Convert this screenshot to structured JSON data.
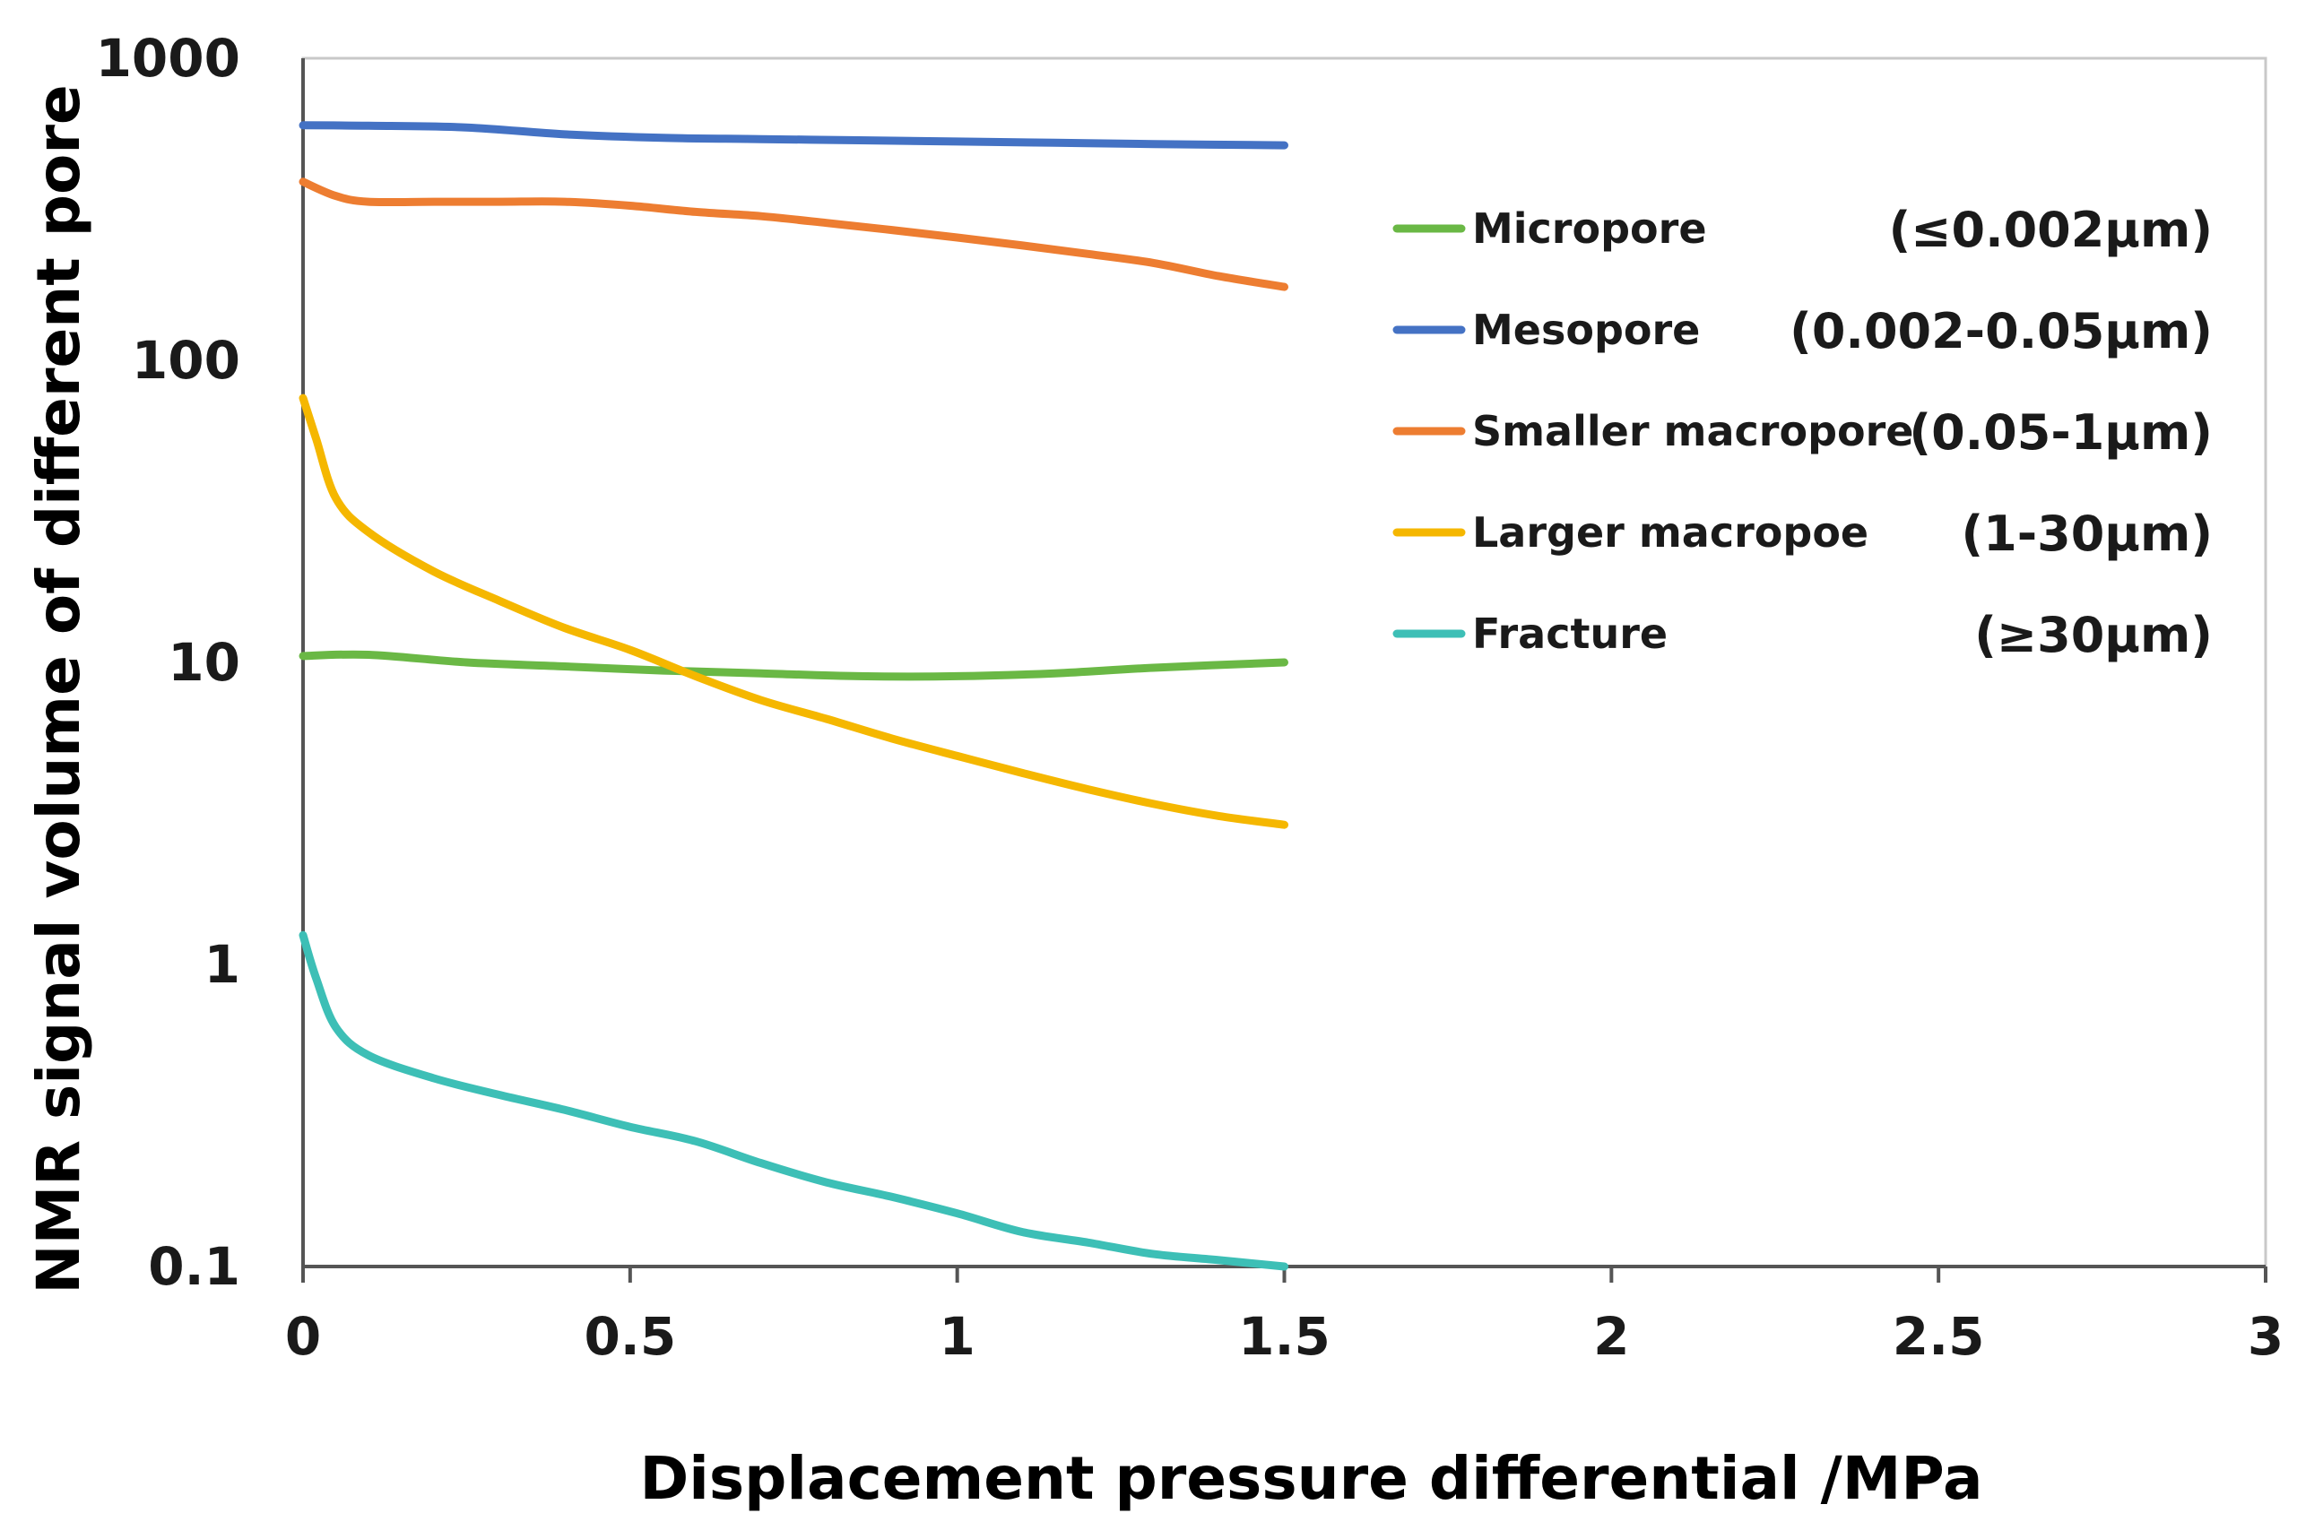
{
  "chart_data": {
    "type": "line",
    "title": "",
    "xlabel": "Displacement pressure differential /MPa",
    "ylabel": "NMR signal volume of different pore",
    "xlim": [
      0,
      3
    ],
    "ylim": [
      0.1,
      1000
    ],
    "y_scale": "log",
    "x_ticks": [
      "0",
      "0.5",
      "1",
      "1.5",
      "2",
      "2.5",
      "3"
    ],
    "y_ticks": [
      "0.1",
      "1",
      "10",
      "100",
      "1000"
    ],
    "grid": false,
    "legend_position": "upper-right",
    "series": [
      {
        "name": "Micropore",
        "range": "(≤0.002μm)",
        "color": "#6ab845",
        "x": [
          0,
          0.1,
          0.25,
          0.4,
          0.55,
          0.7,
          0.85,
          1.0,
          1.15,
          1.3,
          1.5
        ],
        "y": [
          10.5,
          10.6,
          10.0,
          9.7,
          9.4,
          9.2,
          9.0,
          9.0,
          9.2,
          9.6,
          10.0
        ]
      },
      {
        "name": "Mesopore",
        "range": "(0.002-0.05μm)",
        "color": "#4472c4",
        "x": [
          0,
          0.1,
          0.25,
          0.4,
          0.55,
          0.7,
          0.85,
          1.0,
          1.15,
          1.3,
          1.5
        ],
        "y": [
          600,
          598,
          590,
          560,
          545,
          540,
          535,
          530,
          525,
          520,
          515
        ]
      },
      {
        "name": "Smaller macropore",
        "range": "(0.05-1μm)",
        "color": "#ed7d31",
        "x": [
          0,
          0.05,
          0.1,
          0.2,
          0.3,
          0.4,
          0.5,
          0.6,
          0.7,
          0.8,
          0.9,
          1.0,
          1.1,
          1.2,
          1.3,
          1.4,
          1.5
        ],
        "y": [
          390,
          350,
          335,
          335,
          335,
          335,
          325,
          310,
          300,
          285,
          270,
          255,
          240,
          225,
          210,
          190,
          175
        ]
      },
      {
        "name": "Larger macropoe",
        "range": "(1-30μm)",
        "color": "#f5b700",
        "x": [
          0,
          0.02,
          0.05,
          0.1,
          0.2,
          0.3,
          0.4,
          0.5,
          0.6,
          0.7,
          0.8,
          0.9,
          1.0,
          1.1,
          1.2,
          1.3,
          1.4,
          1.5
        ],
        "y": [
          75,
          55,
          35,
          27,
          20,
          16,
          13,
          11,
          9,
          7.5,
          6.5,
          5.6,
          4.9,
          4.3,
          3.8,
          3.4,
          3.1,
          2.9
        ]
      },
      {
        "name": "Fracture",
        "range": "(≥30μm)",
        "color": "#3dbfb6",
        "x": [
          0,
          0.02,
          0.05,
          0.1,
          0.2,
          0.3,
          0.4,
          0.5,
          0.6,
          0.7,
          0.8,
          0.9,
          1.0,
          1.1,
          1.2,
          1.3,
          1.4,
          1.5
        ],
        "y": [
          1.25,
          0.9,
          0.62,
          0.5,
          0.42,
          0.37,
          0.33,
          0.29,
          0.26,
          0.22,
          0.19,
          0.17,
          0.15,
          0.13,
          0.12,
          0.11,
          0.105,
          0.1
        ]
      }
    ],
    "legend": [
      {
        "name": "Micropore",
        "range": "(≤0.002μm)",
        "color": "#6ab845"
      },
      {
        "name": "Mesopore",
        "range": "(0.002-0.05μm)",
        "color": "#4472c4"
      },
      {
        "name": "Smaller macropore",
        "range": "(0.05-1μm)",
        "color": "#ed7d31"
      },
      {
        "name": "Larger macropoe",
        "range": "(1-30μm)",
        "color": "#f5b700"
      },
      {
        "name": "Fracture",
        "range": "(≥30μm)",
        "color": "#3dbfb6"
      }
    ]
  }
}
